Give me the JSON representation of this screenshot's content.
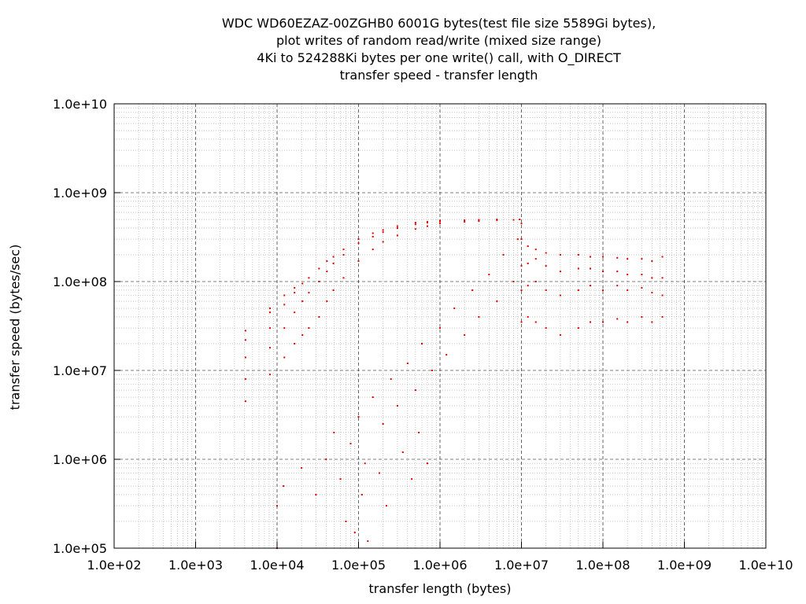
{
  "chart_data": {
    "type": "scatter",
    "title_lines": [
      "WDC WD60EZAZ-00ZGHB0 6001G bytes(test file size 5589Gi bytes),",
      "plot writes of random read/write (mixed size range)",
      "4Ki to 524288Ki bytes per one write() call, with O_DIRECT",
      "transfer speed - transfer length"
    ],
    "xlabel": "transfer length (bytes)",
    "ylabel": "transfer speed (bytes/sec)",
    "x_scale": "log",
    "y_scale": "log",
    "xlim": [
      100,
      10000000000
    ],
    "ylim": [
      100000,
      10000000000
    ],
    "x_tick_labels": [
      "1.0e+02",
      "1.0e+03",
      "1.0e+04",
      "1.0e+05",
      "1.0e+06",
      "1.0e+07",
      "1.0e+08",
      "1.0e+09",
      "1.0e+10"
    ],
    "y_tick_labels": [
      "1.0e+05",
      "1.0e+06",
      "1.0e+07",
      "1.0e+08",
      "1.0e+09",
      "1.0e+10"
    ],
    "grid": true,
    "grid_minor": true,
    "legend": "none",
    "marker_color": "#e00000",
    "series": [
      {
        "points": [
          [
            4096,
            4500000
          ],
          [
            4096,
            8000000
          ],
          [
            4096,
            14000000
          ],
          [
            4096,
            22000000
          ],
          [
            4096,
            28000000
          ],
          [
            8192,
            9000000
          ],
          [
            8192,
            18000000
          ],
          [
            8192,
            30000000
          ],
          [
            8192,
            45000000
          ],
          [
            8192,
            50000000
          ],
          [
            12288,
            14000000
          ],
          [
            12288,
            30000000
          ],
          [
            12288,
            55000000
          ],
          [
            12288,
            70000000
          ],
          [
            16384,
            20000000
          ],
          [
            16384,
            45000000
          ],
          [
            16384,
            75000000
          ],
          [
            16384,
            85000000
          ],
          [
            20480,
            25000000
          ],
          [
            20480,
            60000000
          ],
          [
            20480,
            95000000
          ],
          [
            24576,
            30000000
          ],
          [
            24576,
            75000000
          ],
          [
            24576,
            110000000
          ],
          [
            32768,
            40000000
          ],
          [
            32768,
            100000000
          ],
          [
            32768,
            140000000
          ],
          [
            40960,
            60000000
          ],
          [
            40960,
            130000000
          ],
          [
            40960,
            170000000
          ],
          [
            49152,
            80000000
          ],
          [
            49152,
            160000000
          ],
          [
            49152,
            190000000
          ],
          [
            65536,
            110000000
          ],
          [
            65536,
            200000000
          ],
          [
            65536,
            230000000
          ],
          [
            100000,
            170000000
          ],
          [
            100000,
            270000000
          ],
          [
            100000,
            300000000
          ],
          [
            150000,
            230000000
          ],
          [
            150000,
            320000000
          ],
          [
            150000,
            350000000
          ],
          [
            200000,
            280000000
          ],
          [
            200000,
            360000000
          ],
          [
            200000,
            380000000
          ],
          [
            300000,
            330000000
          ],
          [
            300000,
            400000000
          ],
          [
            300000,
            420000000
          ],
          [
            500000,
            390000000
          ],
          [
            500000,
            440000000
          ],
          [
            500000,
            460000000
          ],
          [
            700000,
            420000000
          ],
          [
            700000,
            460000000
          ],
          [
            700000,
            470000000
          ],
          [
            1000000,
            450000000
          ],
          [
            1000000,
            475000000
          ],
          [
            1000000,
            485000000
          ],
          [
            2000000,
            470000000
          ],
          [
            2000000,
            490000000
          ],
          [
            3000000,
            480000000
          ],
          [
            3000000,
            495000000
          ],
          [
            5000000,
            490000000
          ],
          [
            5000000,
            500000000
          ],
          [
            8000000,
            495000000
          ],
          [
            9500000,
            500000000
          ],
          [
            10000000,
            35000000
          ],
          [
            10000000,
            80000000
          ],
          [
            10000000,
            150000000
          ],
          [
            10000000,
            300000000
          ],
          [
            10000000,
            450000000
          ],
          [
            12000000,
            40000000
          ],
          [
            12000000,
            90000000
          ],
          [
            12000000,
            160000000
          ],
          [
            12000000,
            250000000
          ],
          [
            15000000,
            35000000
          ],
          [
            15000000,
            100000000
          ],
          [
            15000000,
            180000000
          ],
          [
            15000000,
            230000000
          ],
          [
            20000000,
            30000000
          ],
          [
            20000000,
            80000000
          ],
          [
            20000000,
            150000000
          ],
          [
            20000000,
            210000000
          ],
          [
            30000000,
            25000000
          ],
          [
            30000000,
            70000000
          ],
          [
            30000000,
            130000000
          ],
          [
            30000000,
            200000000
          ],
          [
            50000000,
            30000000
          ],
          [
            50000000,
            80000000
          ],
          [
            50000000,
            140000000
          ],
          [
            50000000,
            200000000
          ],
          [
            70000000,
            35000000
          ],
          [
            70000000,
            90000000
          ],
          [
            70000000,
            140000000
          ],
          [
            70000000,
            190000000
          ],
          [
            100000000,
            35000000
          ],
          [
            100000000,
            80000000
          ],
          [
            100000000,
            130000000
          ],
          [
            100000000,
            190000000
          ],
          [
            150000000,
            38000000
          ],
          [
            150000000,
            90000000
          ],
          [
            150000000,
            130000000
          ],
          [
            150000000,
            185000000
          ],
          [
            200000000,
            35000000
          ],
          [
            200000000,
            80000000
          ],
          [
            200000000,
            120000000
          ],
          [
            200000000,
            180000000
          ],
          [
            300000000,
            40000000
          ],
          [
            300000000,
            85000000
          ],
          [
            300000000,
            120000000
          ],
          [
            300000000,
            180000000
          ],
          [
            400000000,
            35000000
          ],
          [
            400000000,
            75000000
          ],
          [
            400000000,
            110000000
          ],
          [
            400000000,
            170000000
          ],
          [
            536870912,
            40000000
          ],
          [
            536870912,
            70000000
          ],
          [
            536870912,
            110000000
          ],
          [
            536870912,
            190000000
          ],
          [
            10000,
            100000
          ],
          [
            10000,
            300000
          ],
          [
            12000,
            500000
          ],
          [
            20000,
            800000
          ],
          [
            30000,
            400000
          ],
          [
            40000,
            1000000
          ],
          [
            50000,
            2000000
          ],
          [
            60000,
            600000
          ],
          [
            80000,
            1500000
          ],
          [
            100000,
            3000000
          ],
          [
            120000,
            900000
          ],
          [
            150000,
            5000000
          ],
          [
            200000,
            2500000
          ],
          [
            250000,
            8000000
          ],
          [
            300000,
            4000000
          ],
          [
            400000,
            12000000
          ],
          [
            500000,
            6000000
          ],
          [
            600000,
            20000000
          ],
          [
            800000,
            10000000
          ],
          [
            1000000,
            30000000
          ],
          [
            1200000,
            15000000
          ],
          [
            1500000,
            50000000
          ],
          [
            2000000,
            25000000
          ],
          [
            2500000,
            80000000
          ],
          [
            3000000,
            40000000
          ],
          [
            4000000,
            120000000
          ],
          [
            5000000,
            60000000
          ],
          [
            6000000,
            200000000
          ],
          [
            8000000,
            100000000
          ],
          [
            9000000,
            300000000
          ],
          [
            70000,
            200000
          ],
          [
            90000,
            150000
          ],
          [
            110000,
            400000
          ],
          [
            130000,
            120000
          ],
          [
            180000,
            700000
          ],
          [
            220000,
            300000
          ],
          [
            350000,
            1200000
          ],
          [
            450000,
            600000
          ],
          [
            550000,
            2000000
          ],
          [
            700000,
            900000
          ]
        ]
      }
    ]
  }
}
